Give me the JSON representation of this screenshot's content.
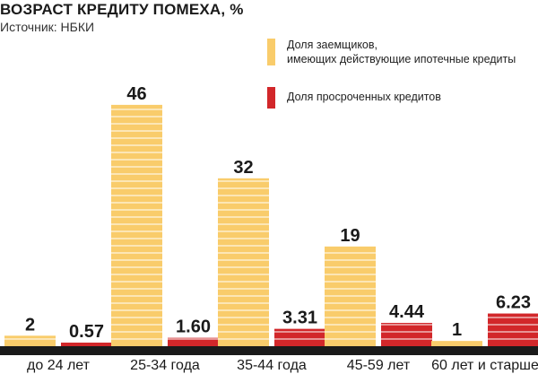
{
  "chart_data": {
    "type": "bar",
    "title": "ВОЗРАСТ КРЕДИТУ ПОМЕХА, %",
    "subtitle": "Источник: НБКИ",
    "categories": [
      "до 24 лет",
      "25-34 года",
      "35-44 года",
      "45-59 лет",
      "60 лет и старше"
    ],
    "series": [
      {
        "name": "Доля заемщиков,\nимеющих действующие ипотечные кредиты",
        "color": "#f9cc6b",
        "values": [
          2,
          46,
          32,
          19,
          1
        ],
        "labels": [
          "2",
          "46",
          "32",
          "19",
          "1"
        ]
      },
      {
        "name": "Доля просроченных кредитов",
        "color": "#d2272a",
        "values": [
          0.57,
          1.6,
          3.31,
          4.44,
          6.23
        ],
        "labels": [
          "0.57",
          "1.60",
          "3.31",
          "4.44",
          "6.23"
        ]
      }
    ],
    "legend_position": "top-right",
    "grid": false,
    "baseline_color": "#1a1a1a"
  }
}
